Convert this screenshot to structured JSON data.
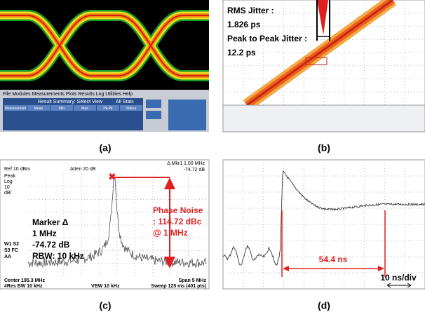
{
  "panel_a": {
    "label": "(a)",
    "menu": "File  Modules  Measurements  Plots  Results  Log  Utilities  Help",
    "table_title": "Result Summary: Select View",
    "view": "All Stats",
    "columns": [
      "Measurement",
      "Mean",
      "Min",
      "Max",
      "Pk-Pk",
      "Status"
    ]
  },
  "panel_b": {
    "label": "(b)",
    "rms_title": "RMS Jitter :",
    "rms_value": "1.826 ps",
    "pp_title": "Peak to Peak Jitter :",
    "pp_value": "12.2 ps"
  },
  "panel_c": {
    "label": "(c)",
    "ref": "Ref 10 dBm",
    "atten": "Atten 20 dB",
    "marker_readout": "Δ Mkr1 1.00 MHz",
    "marker_db": "-74.72 dB",
    "scale_lines": [
      "Peak",
      "Log",
      "10",
      "dB/"
    ],
    "side_lines": [
      "W1 S2",
      "S3 FC",
      "AA"
    ],
    "marker_lines": [
      "Marker Δ",
      "1 MHz",
      "-74.72 dB",
      "RBW: 10 kHz"
    ],
    "noise_lines": [
      "Phase Noise",
      ": 114.72 dBc",
      "@ 1 MHz"
    ],
    "center": "Center 195.3 MHz",
    "span": "Span 5 MHz",
    "res_bw": "#Res BW 10 kHz",
    "vbw": "VBW 10 kHz",
    "sweep": "Sweep 125 ms (401 pts)"
  },
  "panel_d": {
    "label": "(d)",
    "delay": "54.4 ns",
    "scale": "10 ns/div"
  }
}
